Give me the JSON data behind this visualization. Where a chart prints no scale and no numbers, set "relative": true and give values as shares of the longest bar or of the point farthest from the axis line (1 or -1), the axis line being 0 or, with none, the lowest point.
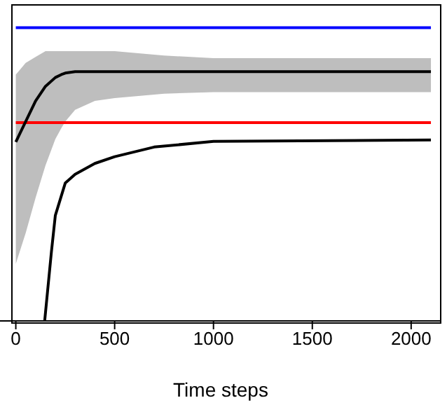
{
  "chart_data": {
    "type": "line",
    "xlabel": "Time steps",
    "relative": true,
    "tick_labels": "x",
    "xlim": [
      -80,
      2153
    ],
    "xticks": [
      0,
      500,
      1000,
      1500,
      2000
    ],
    "grid": false,
    "legend": false,
    "marker": "none",
    "line_style": "solid",
    "series": [
      {
        "color": "#0000ff",
        "x": [
          0,
          2100
        ],
        "values": [
          1,
          1
        ]
      },
      {
        "color": "#ff0000",
        "x": [
          0,
          2100
        ],
        "values": [
          0.676,
          0.676
        ]
      },
      {
        "color": "#000000",
        "x": [
          0,
          50,
          100,
          150,
          200,
          230,
          250,
          300,
          400,
          500,
          750,
          1000,
          2100
        ],
        "values": [
          0.61,
          0.68,
          0.75,
          0.8,
          0.83,
          0.84,
          0.845,
          0.85,
          0.85,
          0.85,
          0.85,
          0.85,
          0.85
        ],
        "lower": [
          0.195,
          0.3,
          0.42,
          0.53,
          0.62,
          0.657,
          0.68,
          0.72,
          0.75,
          0.76,
          0.775,
          0.78,
          0.78
        ],
        "upper": [
          0.84,
          0.88,
          0.9,
          0.92,
          0.92,
          0.92,
          0.92,
          0.92,
          0.92,
          0.92,
          0.905,
          0.896,
          0.896
        ]
      },
      {
        "color": "#000000",
        "x": [
          146,
          180,
          200,
          250,
          300,
          400,
          500,
          700,
          1000,
          2100
        ],
        "values": [
          0,
          0.235,
          0.36,
          0.47,
          0.5,
          0.537,
          0.56,
          0.593,
          0.612,
          0.617
        ]
      }
    ]
  }
}
